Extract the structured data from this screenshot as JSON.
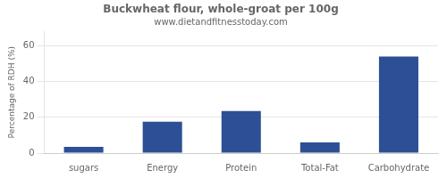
{
  "chart_data": {
    "type": "bar",
    "title": "Buckwheat flour, whole-groat per 100g",
    "subtitle": "www.dietandfitnesstoday.com",
    "categories": [
      "sugars",
      "Energy",
      "Protein",
      "Total-Fat",
      "Carbohydrate"
    ],
    "values": [
      3.5,
      17.5,
      23.5,
      6.0,
      54.0
    ],
    "color": "#2d4f96",
    "ylabel": "Percentage of RDH (%)",
    "ylim": [
      0,
      68
    ],
    "yticks": [
      0,
      20,
      40,
      60
    ],
    "grid": true
  }
}
